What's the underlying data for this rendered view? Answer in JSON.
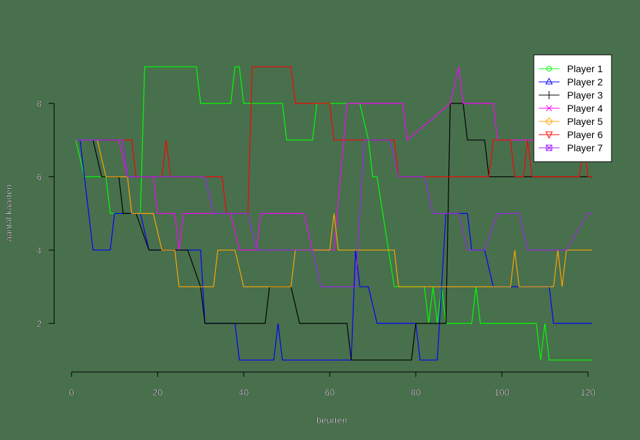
{
  "chart_data": {
    "type": "line",
    "title": "",
    "xlabel": "beurten",
    "ylabel": "aantal kaarten",
    "xlim": [
      0,
      120
    ],
    "ylim": [
      1,
      9
    ],
    "x_ticks": [
      0,
      20,
      40,
      60,
      80,
      100,
      120
    ],
    "y_ticks": [
      2,
      4,
      6,
      8
    ],
    "grid": false,
    "legend_position": "top-right",
    "background": "#48704d",
    "series": [
      {
        "name": "Player 1",
        "color": "#00ff00",
        "marker": "circle",
        "points": [
          [
            1,
            7
          ],
          [
            3,
            6
          ],
          [
            8,
            6
          ],
          [
            9,
            5
          ],
          [
            16,
            5
          ],
          [
            17,
            9
          ],
          [
            29,
            9
          ],
          [
            30,
            8
          ],
          [
            37,
            8
          ],
          [
            38,
            9
          ],
          [
            39,
            9
          ],
          [
            40,
            8
          ],
          [
            49,
            8
          ],
          [
            50,
            7
          ],
          [
            56,
            7
          ],
          [
            57,
            8
          ],
          [
            67,
            8
          ],
          [
            69,
            7
          ],
          [
            70,
            6
          ],
          [
            71,
            6
          ],
          [
            75,
            3
          ],
          [
            82,
            3
          ],
          [
            83,
            2
          ],
          [
            84,
            3
          ],
          [
            85,
            2
          ],
          [
            86,
            3
          ],
          [
            87,
            2
          ],
          [
            93,
            2
          ],
          [
            94,
            3
          ],
          [
            95,
            2
          ],
          [
            108,
            2
          ],
          [
            109,
            1
          ],
          [
            110,
            2
          ],
          [
            111,
            1
          ],
          [
            121,
            1
          ]
        ]
      },
      {
        "name": "Player 2",
        "color": "#0000ff",
        "marker": "triangle",
        "points": [
          [
            2,
            7
          ],
          [
            5,
            4
          ],
          [
            9,
            4
          ],
          [
            10,
            5
          ],
          [
            16,
            5
          ],
          [
            18,
            4
          ],
          [
            30,
            4
          ],
          [
            31,
            2
          ],
          [
            38,
            2
          ],
          [
            39,
            1
          ],
          [
            47,
            1
          ],
          [
            48,
            2
          ],
          [
            49,
            1
          ],
          [
            65,
            1
          ],
          [
            66,
            4
          ],
          [
            67,
            3
          ],
          [
            69,
            3
          ],
          [
            71,
            2
          ],
          [
            80,
            2
          ],
          [
            81,
            1
          ],
          [
            85,
            1
          ],
          [
            87,
            5
          ],
          [
            92,
            5
          ],
          [
            93,
            4
          ],
          [
            96,
            4
          ],
          [
            98,
            3
          ],
          [
            101,
            3
          ],
          [
            103,
            3
          ],
          [
            111,
            3
          ],
          [
            112,
            2
          ],
          [
            121,
            2
          ]
        ]
      },
      {
        "name": "Player 3",
        "color": "#000000",
        "marker": "plus",
        "points": [
          [
            5,
            7
          ],
          [
            7,
            6
          ],
          [
            11,
            6
          ],
          [
            12,
            5
          ],
          [
            15,
            5
          ],
          [
            18,
            4
          ],
          [
            27,
            4
          ],
          [
            30,
            3
          ],
          [
            31,
            2
          ],
          [
            45,
            2
          ],
          [
            46,
            3
          ],
          [
            51,
            3
          ],
          [
            53,
            2
          ],
          [
            58,
            2
          ],
          [
            64,
            2
          ],
          [
            65,
            1
          ],
          [
            79,
            1
          ],
          [
            80,
            2
          ],
          [
            87,
            2
          ],
          [
            88,
            8
          ],
          [
            91,
            8
          ],
          [
            92,
            7
          ],
          [
            96,
            7
          ],
          [
            97,
            6
          ],
          [
            111,
            6
          ],
          [
            112,
            6
          ],
          [
            116,
            6
          ],
          [
            117,
            6
          ],
          [
            121,
            6
          ]
        ]
      },
      {
        "name": "Player 4",
        "color": "#ff00ff",
        "marker": "x",
        "points": [
          [
            2,
            7
          ],
          [
            11,
            7
          ],
          [
            13,
            6
          ],
          [
            19,
            6
          ],
          [
            20,
            5
          ],
          [
            24,
            5
          ],
          [
            25,
            4
          ],
          [
            26,
            5
          ],
          [
            37,
            5
          ],
          [
            39,
            4
          ],
          [
            43,
            4
          ],
          [
            44,
            5
          ],
          [
            54,
            5
          ],
          [
            56,
            4
          ],
          [
            61,
            4
          ],
          [
            64,
            8
          ],
          [
            77,
            8
          ],
          [
            78,
            7
          ],
          [
            88,
            8
          ],
          [
            90,
            9
          ],
          [
            91,
            8
          ],
          [
            98,
            8
          ],
          [
            99,
            7
          ],
          [
            121,
            7
          ]
        ]
      },
      {
        "name": "Player 5",
        "color": "#ffa500",
        "marker": "diamond",
        "points": [
          [
            6,
            7
          ],
          [
            8,
            6
          ],
          [
            13,
            6
          ],
          [
            14,
            5
          ],
          [
            19,
            5
          ],
          [
            21,
            4
          ],
          [
            24,
            4
          ],
          [
            25,
            3
          ],
          [
            33,
            3
          ],
          [
            34,
            4
          ],
          [
            38,
            4
          ],
          [
            40,
            3
          ],
          [
            51,
            3
          ],
          [
            52,
            4
          ],
          [
            60,
            4
          ],
          [
            61,
            5
          ],
          [
            62,
            4
          ],
          [
            75,
            4
          ],
          [
            76,
            3
          ],
          [
            93,
            3
          ],
          [
            94,
            3
          ],
          [
            102,
            3
          ],
          [
            103,
            4
          ],
          [
            104,
            3
          ],
          [
            112,
            3
          ],
          [
            113,
            4
          ],
          [
            114,
            3
          ],
          [
            115,
            4
          ],
          [
            121,
            4
          ]
        ]
      },
      {
        "name": "Player 6",
        "color": "#ff0000",
        "marker": "triangle-down",
        "points": [
          [
            7,
            7
          ],
          [
            14,
            7
          ],
          [
            15,
            6
          ],
          [
            21,
            6
          ],
          [
            22,
            7
          ],
          [
            23,
            6
          ],
          [
            35,
            6
          ],
          [
            36,
            5
          ],
          [
            41,
            5
          ],
          [
            42,
            9
          ],
          [
            51,
            9
          ],
          [
            52,
            8
          ],
          [
            60,
            8
          ],
          [
            61,
            7
          ],
          [
            75,
            7
          ],
          [
            76,
            6
          ],
          [
            97,
            6
          ],
          [
            98,
            7
          ],
          [
            102,
            7
          ],
          [
            103,
            6
          ],
          [
            105,
            6
          ],
          [
            106,
            7
          ],
          [
            107,
            6
          ],
          [
            118,
            6
          ],
          [
            119,
            7
          ],
          [
            120,
            6
          ],
          [
            121,
            6
          ]
        ]
      },
      {
        "name": "Player 7",
        "color": "#a020f0",
        "marker": "square-x",
        "points": [
          [
            1,
            7
          ],
          [
            12,
            7
          ],
          [
            13,
            6
          ],
          [
            31,
            6
          ],
          [
            33,
            5
          ],
          [
            41,
            5
          ],
          [
            43,
            4
          ],
          [
            56,
            4
          ],
          [
            58,
            3
          ],
          [
            66,
            3
          ],
          [
            68,
            7
          ],
          [
            74,
            7
          ],
          [
            76,
            6
          ],
          [
            82,
            6
          ],
          [
            84,
            5
          ],
          [
            90,
            5
          ],
          [
            92,
            4
          ],
          [
            96,
            4
          ],
          [
            99,
            5
          ],
          [
            104,
            5
          ],
          [
            106,
            4
          ],
          [
            113,
            4
          ],
          [
            115,
            4
          ],
          [
            120,
            5
          ],
          [
            121,
            5
          ]
        ]
      }
    ]
  },
  "legend": {
    "items": [
      {
        "label": "Player 1"
      },
      {
        "label": "Player 2"
      },
      {
        "label": "Player 3"
      },
      {
        "label": "Player 4"
      },
      {
        "label": "Player 5"
      },
      {
        "label": "Player 6"
      },
      {
        "label": "Player 7"
      }
    ]
  },
  "axes": {
    "x_title": "beurten",
    "y_title": "aantal kaarten",
    "x_tick_labels": [
      "0",
      "20",
      "40",
      "60",
      "80",
      "100",
      "120"
    ],
    "y_tick_labels": [
      "2",
      "4",
      "6",
      "8"
    ]
  }
}
